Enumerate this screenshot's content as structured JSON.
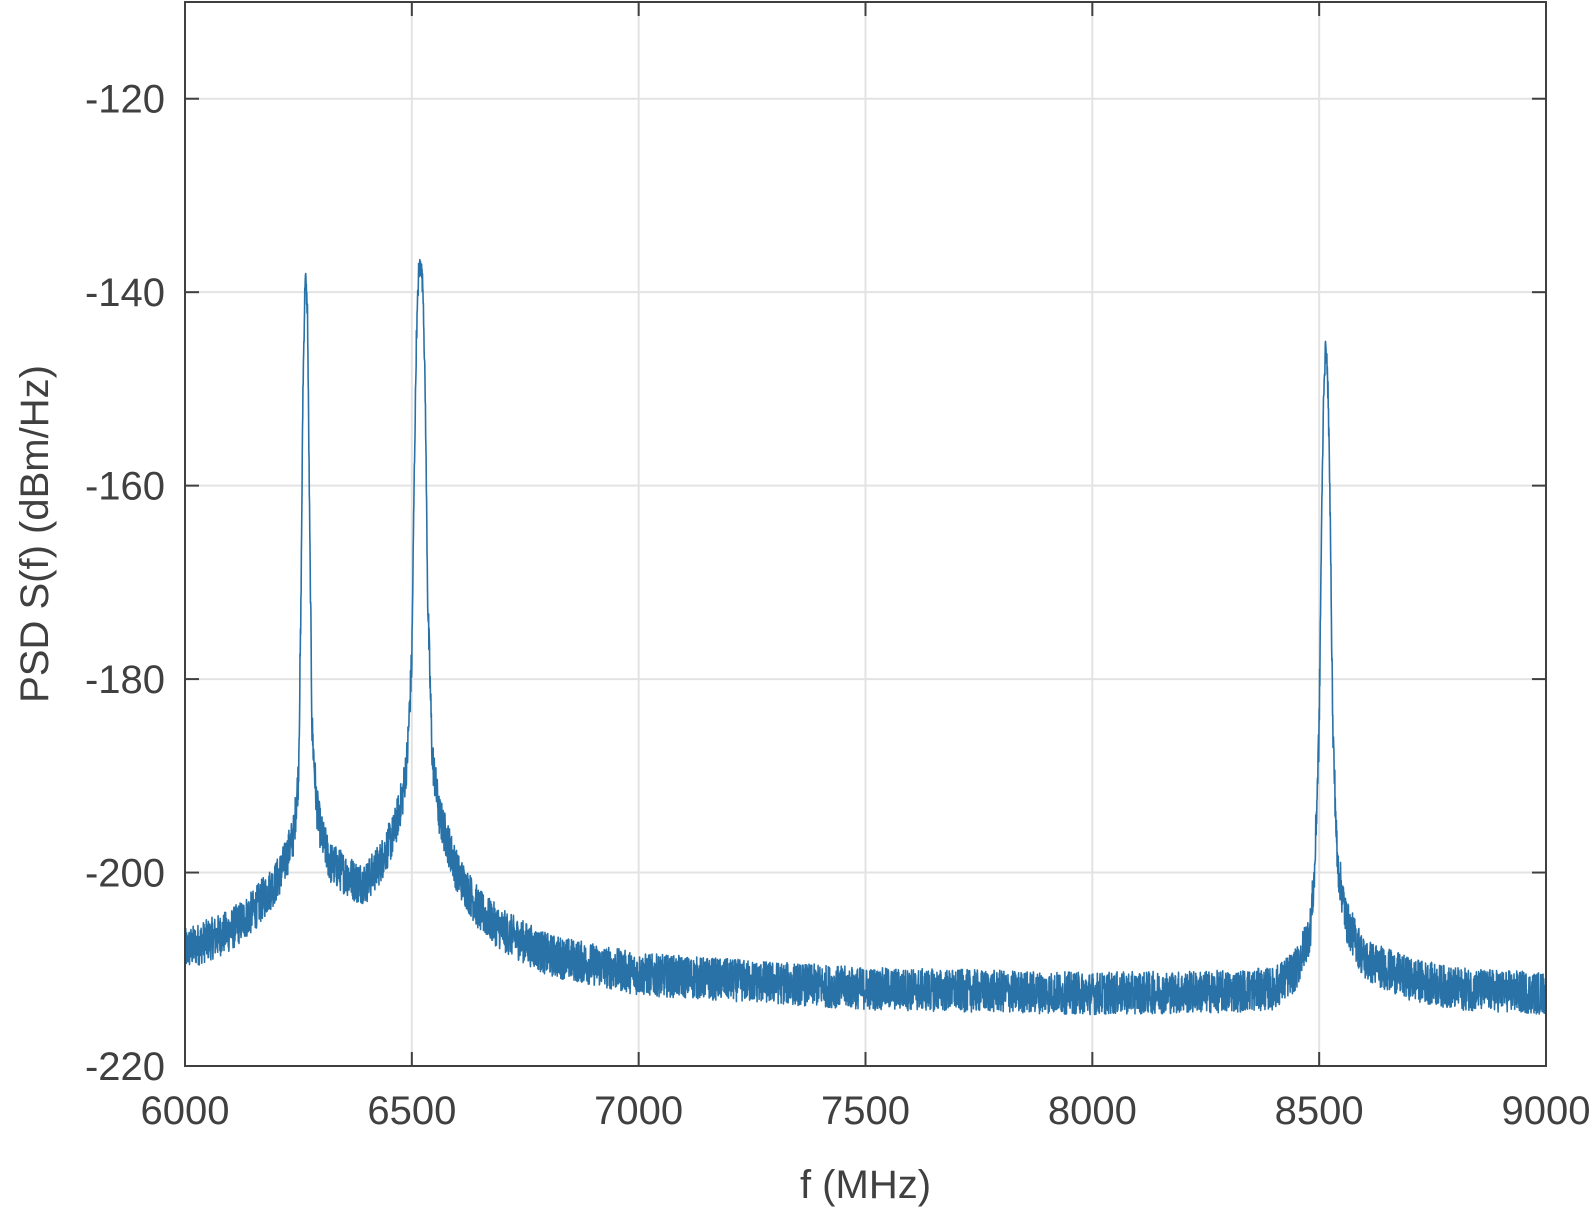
{
  "chart_data": {
    "type": "line",
    "title": "",
    "xlabel": "f (MHz)",
    "ylabel": "PSD S(f)  (dBm/Hz)",
    "xlim": [
      6000,
      9000
    ],
    "ylim": [
      -220,
      -110
    ],
    "xticks": [
      6000,
      6500,
      7000,
      7500,
      8000,
      8500,
      9000
    ],
    "yticks": [
      -220,
      -200,
      -180,
      -160,
      -140,
      -120
    ],
    "grid": true,
    "legend": "none",
    "colors": {
      "series": "#2872A8",
      "grid": "#e3e3e3",
      "axes": "#404040"
    },
    "series": [
      {
        "x": [
          6000,
          6100,
          6150,
          6200,
          6220,
          6240,
          6250,
          6255,
          6260,
          6265,
          6270,
          6275,
          6280,
          6290,
          6300,
          6320,
          6350,
          6380,
          6400,
          6430,
          6460,
          6480,
          6490,
          6500,
          6505,
          6510,
          6515,
          6520,
          6525,
          6530,
          6535,
          6545,
          6560,
          6600,
          6650,
          6700,
          6800,
          7000,
          7500,
          8000,
          8300,
          8400,
          8450,
          8480,
          8490,
          8500,
          8505,
          8510,
          8515,
          8520,
          8525,
          8530,
          8540,
          8560,
          8600,
          8700,
          8800,
          9000
        ],
        "y": [
          -208,
          -206,
          -204,
          -201,
          -199,
          -196,
          -190,
          -175,
          -150,
          -138,
          -142,
          -165,
          -185,
          -193,
          -196,
          -199,
          -200,
          -201,
          -201,
          -199,
          -196,
          -192,
          -188,
          -178,
          -160,
          -145,
          -138,
          -137,
          -140,
          -152,
          -172,
          -188,
          -194,
          -200,
          -204,
          -206,
          -208.5,
          -210.5,
          -212,
          -212.5,
          -212.3,
          -212,
          -210,
          -206,
          -200,
          -185,
          -165,
          -150,
          -145,
          -151,
          -165,
          -185,
          -199,
          -205,
          -209,
          -211,
          -212,
          -212.5
        ]
      }
    ]
  }
}
